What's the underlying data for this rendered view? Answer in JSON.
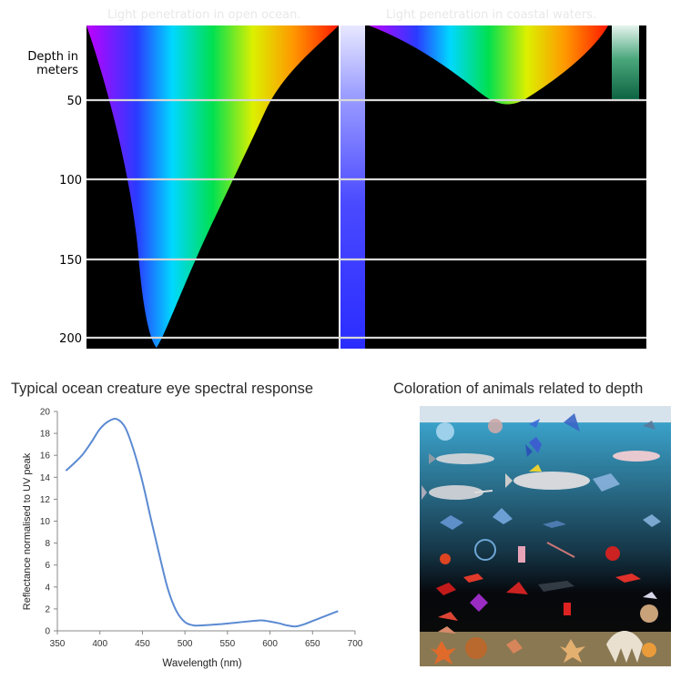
{
  "top_figure": {
    "open_title": "Light penetration in open ocean.",
    "coastal_title": "Light penetration in coastal waters.",
    "depth_label_line1": "Depth in",
    "depth_label_line2": "meters",
    "depth_ticks": [
      "50",
      "100",
      "150",
      "200"
    ],
    "colors": {
      "background": "#000000",
      "gridline": "#d8d8d8"
    }
  },
  "chart_data": [
    {
      "type": "area",
      "title": "Light penetration in open ocean.",
      "ylabel": "Depth in meters",
      "ylim": [
        0,
        205
      ],
      "y_ticks": [
        50,
        100,
        150,
        200
      ],
      "y_inverted": true,
      "spectrum": [
        "violet",
        "blue",
        "cyan",
        "green",
        "yellow",
        "orange",
        "red"
      ],
      "deepest_color": "blue",
      "max_depth": 205
    },
    {
      "type": "area",
      "title": "Light penetration in coastal waters.",
      "ylabel": "Depth in meters",
      "y_ticks": [
        50,
        100,
        150,
        200
      ],
      "spectrum": [
        "violet",
        "blue",
        "cyan",
        "green",
        "yellow",
        "orange",
        "red"
      ],
      "deepest_color": "green",
      "max_depth": 52
    },
    {
      "type": "line",
      "title": "Typical ocean creature eye spectral response",
      "xlabel": "Wavelength (nm)",
      "ylabel": "Reflectance normalised to UV peak",
      "xlim": [
        350,
        700
      ],
      "ylim": [
        0,
        20
      ],
      "x_ticks": [
        350,
        400,
        450,
        500,
        550,
        600,
        650,
        700
      ],
      "y_ticks": [
        0,
        2,
        4,
        6,
        8,
        10,
        12,
        14,
        16,
        18,
        20
      ],
      "grid": false,
      "series": [
        {
          "color": "#5b8ad2",
          "x": [
            360,
            370,
            380,
            390,
            400,
            410,
            420,
            430,
            440,
            450,
            460,
            470,
            480,
            490,
            500,
            510,
            520,
            540,
            560,
            580,
            590,
            600,
            610,
            620,
            630,
            640,
            650,
            660,
            670,
            680
          ],
          "y": [
            14.6,
            15.3,
            16.1,
            17.2,
            18.4,
            19.1,
            19.3,
            18.5,
            16.4,
            13.6,
            10.2,
            6.9,
            3.8,
            1.8,
            0.8,
            0.5,
            0.5,
            0.6,
            0.75,
            0.9,
            0.95,
            0.85,
            0.7,
            0.5,
            0.4,
            0.6,
            0.9,
            1.2,
            1.5,
            1.8
          ]
        }
      ]
    }
  ],
  "bottom_left": {
    "title": "Typical ocean creature eye spectral response"
  },
  "bottom_right": {
    "title": "Coloration of animals related to depth"
  }
}
